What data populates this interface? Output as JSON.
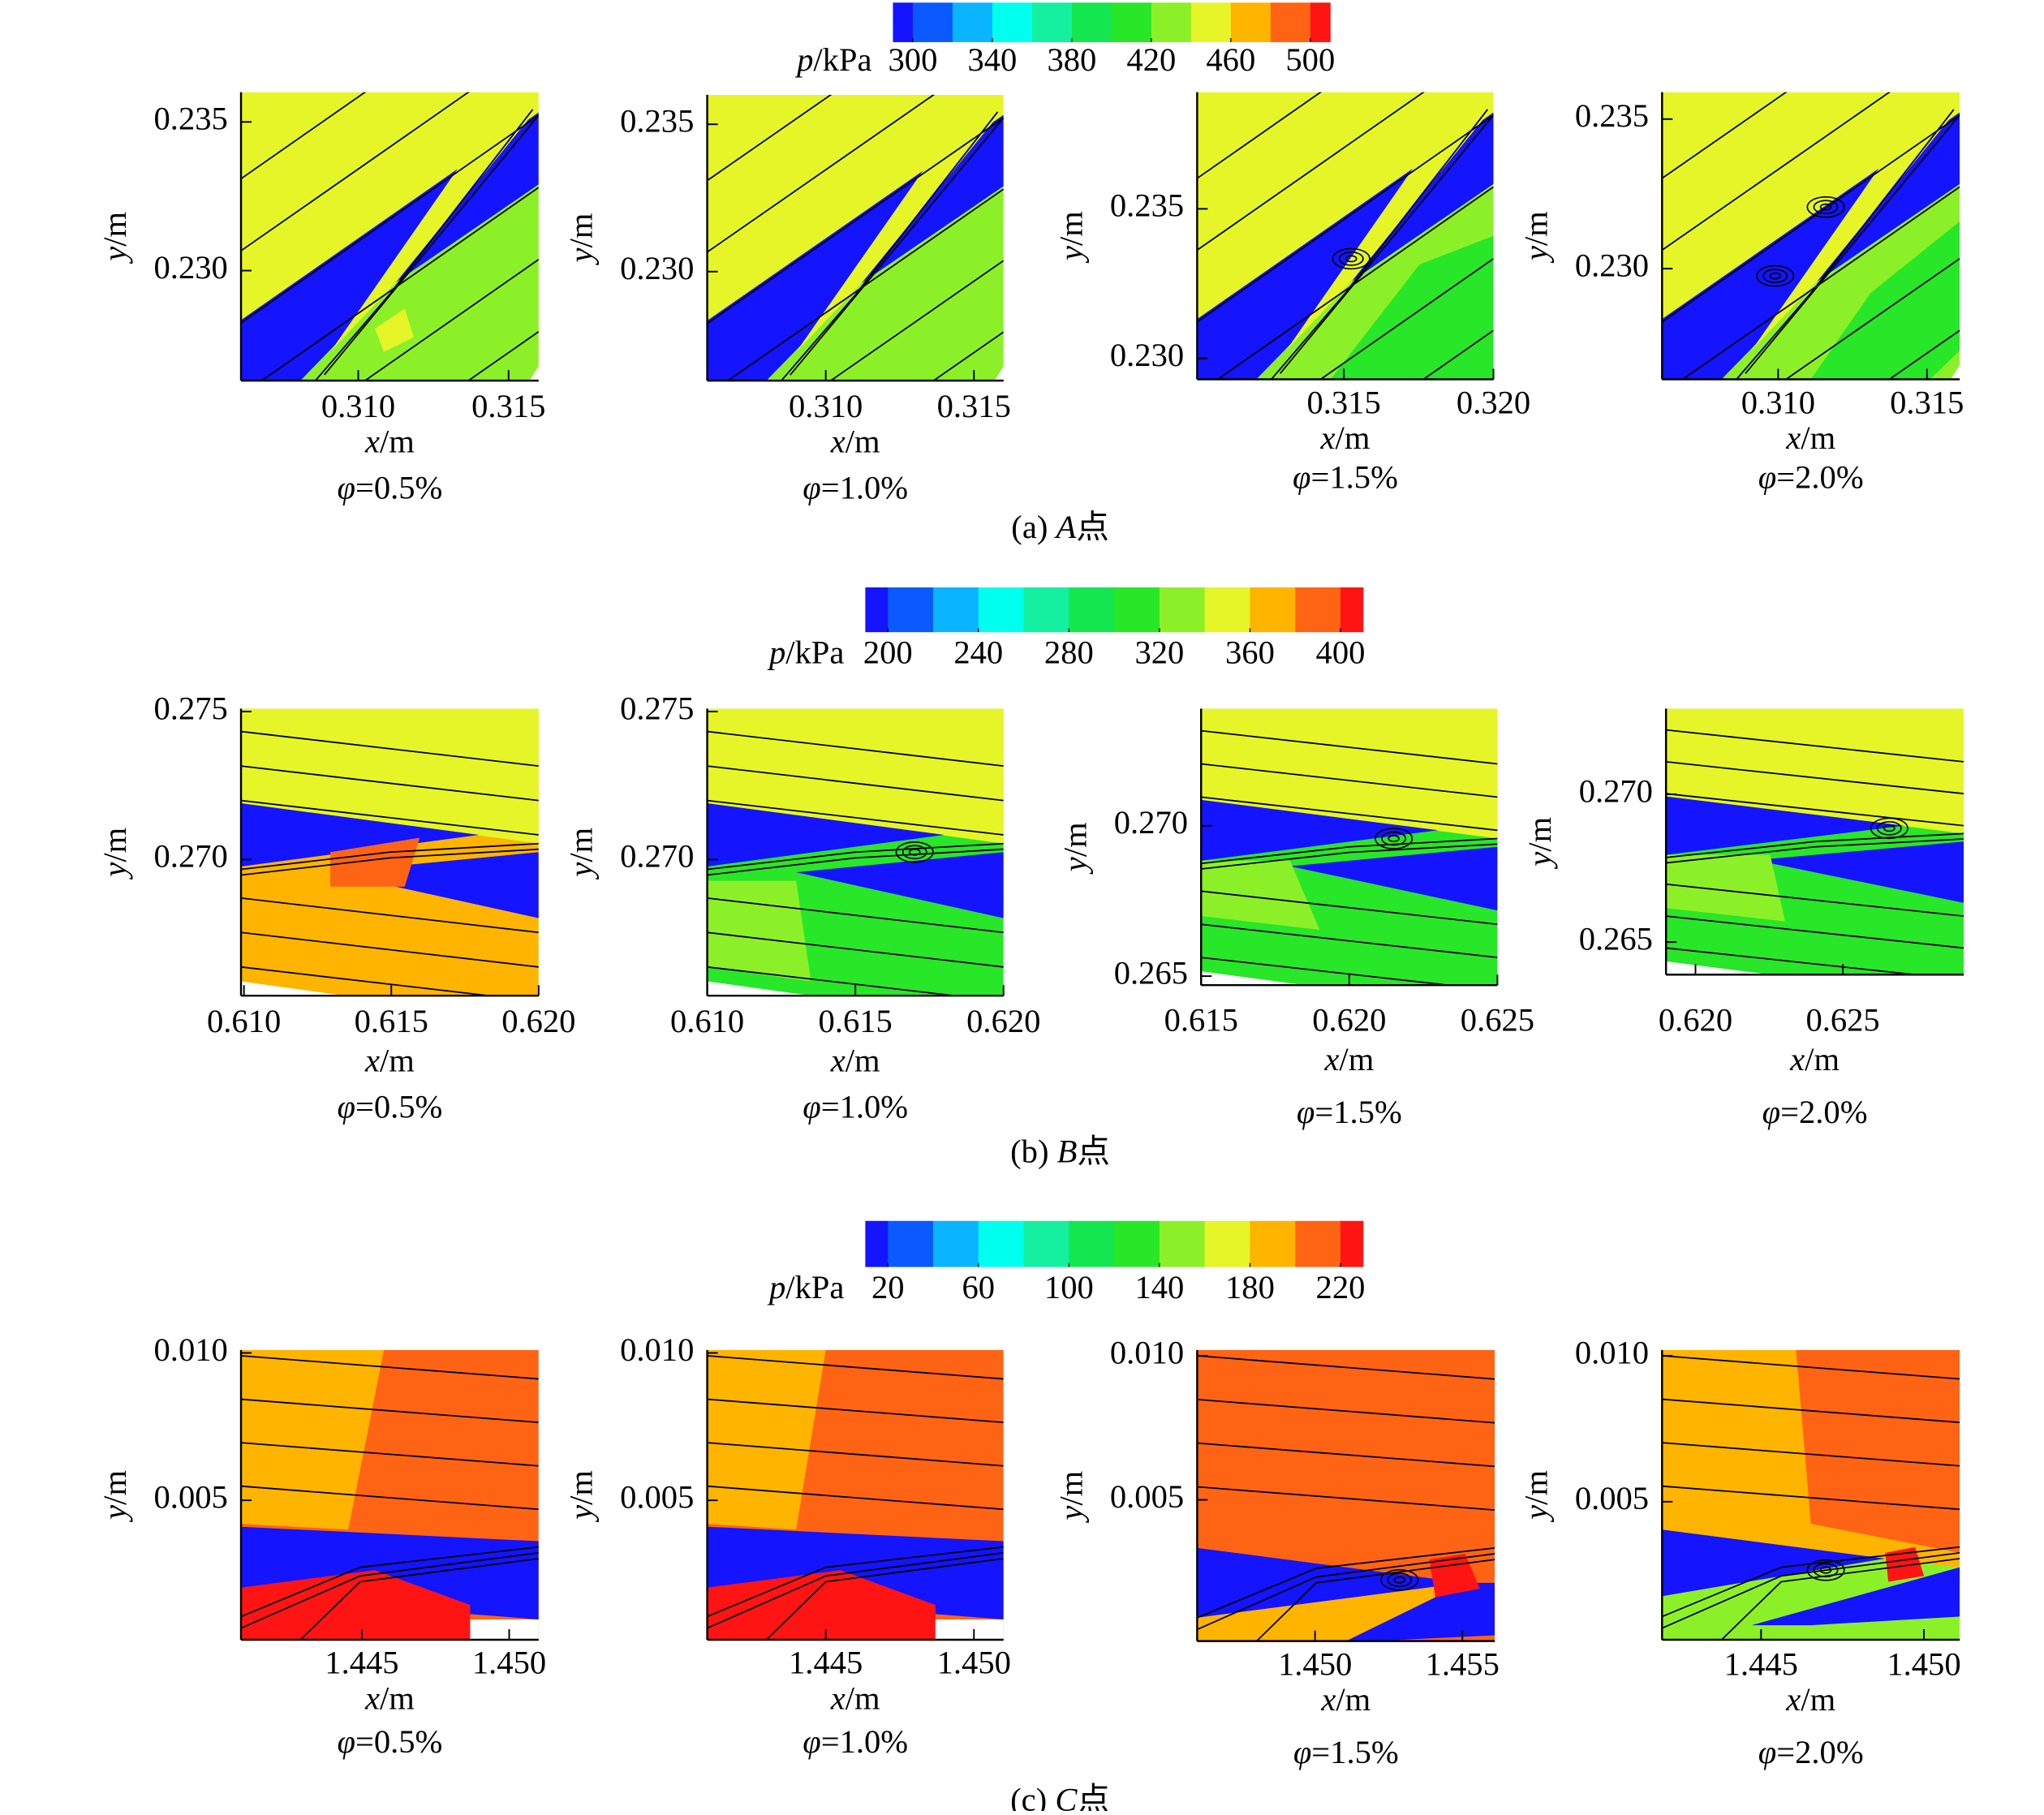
{
  "chart_data": [
    {
      "type": "contour",
      "caption": "(a) A点",
      "colorbar": {
        "label": "p/kPa",
        "lim": [
          290,
          510
        ],
        "ticks": [
          300,
          340,
          380,
          420,
          460,
          500
        ],
        "colors": [
          "#1414ff",
          "#0a5aff",
          "#0ab4ff",
          "#00ffee",
          "#14f0a0",
          "#14e650",
          "#28e628",
          "#8cf028",
          "#e6f528",
          "#ffb400",
          "#ff6414",
          "#ff1414"
        ]
      },
      "panels": [
        {
          "title": "φ=0.5%",
          "xlabel": "x/m",
          "ylabel": "y/m",
          "xlim": [
            0.3061,
            0.316
          ],
          "ylim": [
            0.2263,
            0.236
          ],
          "xticks": [
            {
              "value": 0.31,
              "label": "0.310"
            },
            0.315
          ],
          "yticks": [
            {
              "value": 0.23,
              "label": "0.230"
            },
            0.235
          ]
        },
        {
          "title": "φ=1.0%",
          "xlabel": "x/m",
          "ylabel": "y/m",
          "xlim": [
            0.306,
            0.316
          ],
          "ylim": [
            0.2263,
            0.236
          ],
          "xticks": [
            {
              "value": 0.31,
              "label": "0.310"
            },
            0.315
          ],
          "yticks": [
            {
              "value": 0.23,
              "label": "0.230"
            },
            0.235
          ]
        },
        {
          "title": "φ=1.5%",
          "xlabel": "x/m",
          "ylabel": "y/m",
          "xlim": [
            0.3101,
            0.32
          ],
          "ylim": [
            0.2293,
            0.2389
          ],
          "xticks": [
            0.315,
            {
              "value": 0.32,
              "label": "0.320"
            }
          ],
          "yticks": [
            {
              "value": 0.23,
              "label": "0.230"
            },
            0.235
          ]
        },
        {
          "title": "φ=2.0%",
          "xlabel": "x/m",
          "ylabel": "y/m",
          "xlim": [
            0.3061,
            0.3161
          ],
          "ylim": [
            0.2263,
            0.2359
          ],
          "xticks": [
            {
              "value": 0.31,
              "label": "0.310"
            },
            0.315
          ],
          "yticks": [
            {
              "value": 0.23,
              "label": "0.230"
            },
            0.235
          ]
        }
      ]
    },
    {
      "type": "contour",
      "caption": "(b) B点",
      "colorbar": {
        "label": "p/kPa",
        "lim": [
          190,
          410
        ],
        "ticks": [
          200,
          240,
          280,
          320,
          360,
          400
        ],
        "colors": [
          "#1414ff",
          "#0a5aff",
          "#0ab4ff",
          "#00ffee",
          "#14f0a0",
          "#14e650",
          "#28e628",
          "#8cf028",
          "#e6f528",
          "#ffb400",
          "#ff6414",
          "#ff1414"
        ]
      },
      "panels": [
        {
          "title": "φ=0.5%",
          "xlabel": "x/m",
          "ylabel": "y/m",
          "xlim": [
            0.6099,
            0.62
          ],
          "ylim": [
            0.2654,
            0.2751
          ],
          "xticks": [
            {
              "value": 0.61,
              "label": "0.610"
            },
            0.615,
            {
              "value": 0.62,
              "label": "0.620"
            }
          ],
          "yticks": [
            {
              "value": 0.27,
              "label": "0.270"
            },
            0.275
          ]
        },
        {
          "title": "φ=1.0%",
          "xlabel": "x/m",
          "ylabel": "y/m",
          "xlim": [
            0.61,
            0.62
          ],
          "ylim": [
            0.2654,
            0.2751
          ],
          "xticks": [
            {
              "value": 0.61,
              "label": "0.610"
            },
            0.615,
            {
              "value": 0.62,
              "label": "0.620"
            }
          ],
          "yticks": [
            {
              "value": 0.27,
              "label": "0.270"
            },
            0.275
          ]
        },
        {
          "title": "φ=1.5%",
          "xlabel": "x/m",
          "ylabel": "y/m",
          "xlim": [
            0.615,
            0.625
          ],
          "ylim": [
            0.2647,
            0.2739
          ],
          "xticks": [
            0.615,
            {
              "value": 0.62,
              "label": "0.620"
            },
            0.625
          ],
          "yticks": [
            0.265,
            {
              "value": 0.27,
              "label": "0.270"
            }
          ]
        },
        {
          "title": "φ=2.0%",
          "xlabel": "x/m",
          "ylabel": "y/m",
          "xlim": [
            0.619,
            0.6291
          ],
          "ylim": [
            0.2639,
            0.2729
          ],
          "xticks": [
            {
              "value": 0.62,
              "label": "0.620"
            },
            0.625
          ],
          "yticks": [
            0.265,
            {
              "value": 0.27,
              "label": "0.270"
            }
          ]
        }
      ]
    },
    {
      "type": "contour",
      "caption": "(c) C点",
      "colorbar": {
        "label": "p/kPa",
        "lim": [
          10,
          230
        ],
        "ticks": [
          20,
          60,
          100,
          140,
          180,
          220
        ],
        "colors": [
          "#1414ff",
          "#0a5aff",
          "#0ab4ff",
          "#00ffee",
          "#14f0a0",
          "#14e650",
          "#28e628",
          "#8cf028",
          "#e6f528",
          "#ffb400",
          "#ff6414",
          "#ff1414"
        ]
      },
      "panels": [
        {
          "title": "φ=0.5%",
          "xlabel": "x/m",
          "ylabel": "y/m",
          "xlim": [
            1.4409,
            1.451
          ],
          "ylim": [
            0.00027,
            0.0101
          ],
          "xticks": [
            1.445,
            {
              "value": 1.45,
              "label": "1.450"
            }
          ],
          "yticks": [
            0.005,
            {
              "value": 0.01,
              "label": "0.010"
            }
          ]
        },
        {
          "title": "φ=1.0%",
          "xlabel": "x/m",
          "ylabel": "y/m",
          "xlim": [
            1.441,
            1.451
          ],
          "ylim": [
            0.00027,
            0.0101
          ],
          "xticks": [
            1.445,
            {
              "value": 1.45,
              "label": "1.450"
            }
          ],
          "yticks": [
            0.005,
            {
              "value": 0.01,
              "label": "0.010"
            }
          ]
        },
        {
          "title": "φ=1.5%",
          "xlabel": "x/m",
          "ylabel": "y/m",
          "xlim": [
            1.446,
            1.4561
          ],
          "ylim": [
            0.0001,
            0.0102
          ],
          "xticks": [
            {
              "value": 1.45,
              "label": "1.450"
            },
            1.455
          ],
          "yticks": [
            0.005,
            {
              "value": 0.01,
              "label": "0.010"
            }
          ]
        },
        {
          "title": "φ=2.0%",
          "xlabel": "x/m",
          "ylabel": "y/m",
          "xlim": [
            1.44196,
            1.4511
          ],
          "ylim": [
            0.00027,
            0.0102
          ],
          "xticks": [
            1.445,
            {
              "value": 1.45,
              "label": "1.450"
            }
          ],
          "yticks": [
            0.005,
            {
              "value": 0.01,
              "label": "0.010"
            }
          ]
        }
      ]
    }
  ]
}
